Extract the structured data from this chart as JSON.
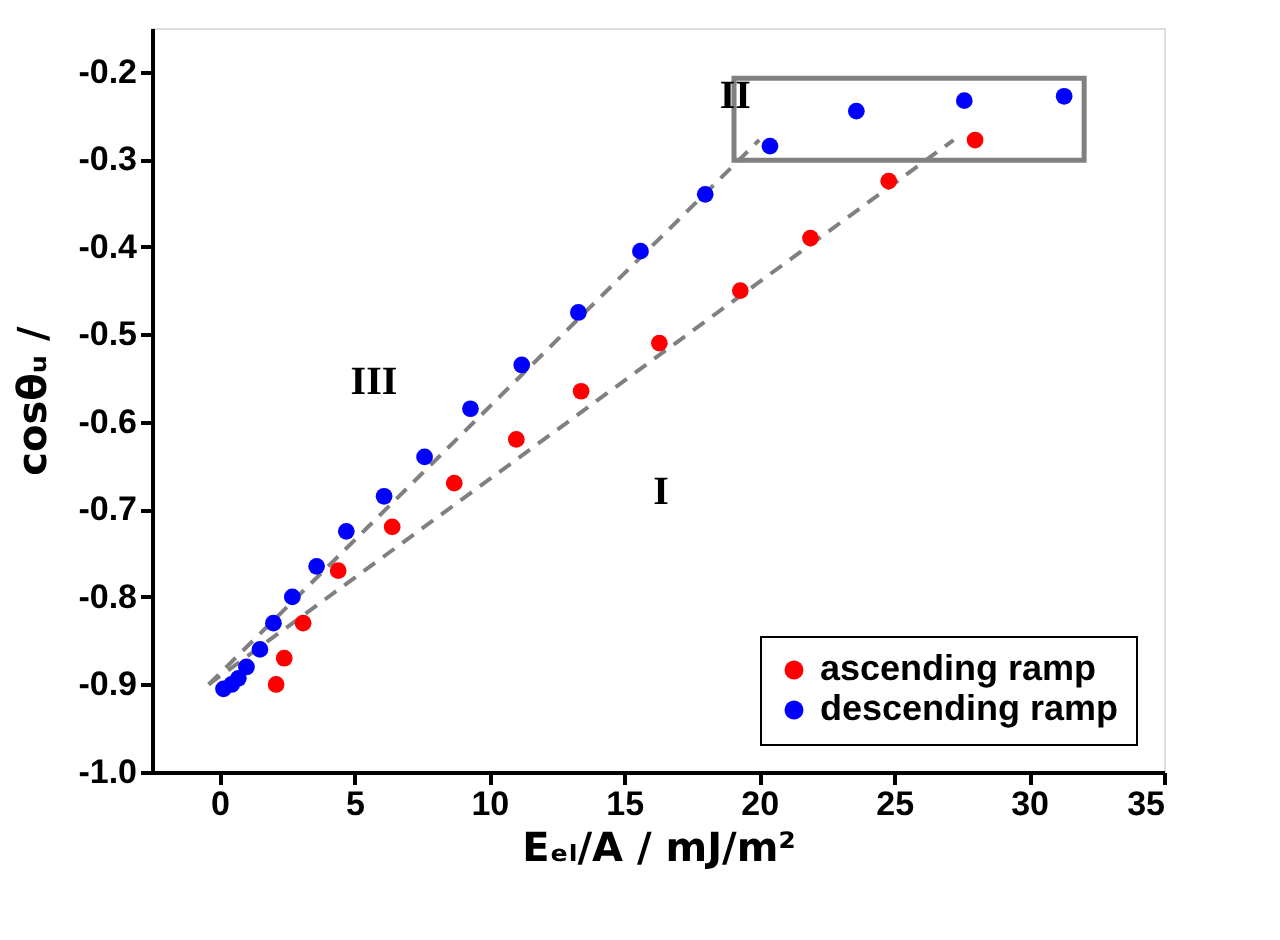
{
  "chart_data": {
    "type": "scatter",
    "xlabel": "Eₑₗ/A / mJ/m²",
    "ylabel": "cosθᵤ /",
    "xlim": [
      -2.5,
      35
    ],
    "xticks": [
      0,
      5,
      10,
      15,
      20,
      25,
      30,
      35
    ],
    "ylim": [
      -1.0,
      -0.15
    ],
    "yticks": [
      {
        "value": -1.0,
        "label": "-1.0"
      },
      {
        "value": -0.9,
        "label": "-0.9"
      },
      {
        "value": -0.8,
        "label": "-0.8"
      },
      {
        "value": -0.7,
        "label": "-0.7"
      },
      {
        "value": -0.6,
        "label": "-0.6"
      },
      {
        "value": -0.5,
        "label": "-0.5"
      },
      {
        "value": -0.4,
        "label": "-0.4"
      },
      {
        "value": -0.3,
        "label": "-0.3"
      },
      {
        "value": -0.2,
        "label": "-0.2"
      }
    ],
    "grid": false,
    "legend": "bottom right",
    "series": [
      {
        "name": "ascending ramp",
        "color": "#ff0000",
        "marker": "circle",
        "x": [
          2.1,
          2.4,
          3.1,
          4.4,
          6.4,
          8.7,
          11.0,
          13.4,
          16.3,
          19.3,
          21.9,
          24.8,
          28.0
        ],
        "values": [
          -0.9,
          -0.87,
          -0.83,
          -0.77,
          -0.72,
          -0.67,
          -0.62,
          -0.565,
          -0.51,
          -0.45,
          -0.39,
          -0.325,
          -0.278
        ]
      },
      {
        "name": "descending ramp",
        "color": "#0000ff",
        "marker": "circle",
        "x": [
          0.15,
          0.45,
          0.7,
          1.0,
          1.5,
          2.0,
          2.7,
          3.6,
          4.7,
          6.1,
          7.6,
          9.3,
          11.2,
          13.3,
          15.6,
          18.0,
          20.4,
          23.6,
          27.6,
          31.3
        ],
        "values": [
          -0.905,
          -0.9,
          -0.893,
          -0.88,
          -0.86,
          -0.83,
          -0.8,
          -0.765,
          -0.725,
          -0.685,
          -0.64,
          -0.585,
          -0.535,
          -0.475,
          -0.405,
          -0.34,
          -0.285,
          -0.245,
          -0.233,
          -0.228
        ]
      },
      {
        "type": "line",
        "color": "#808080",
        "line_style": "dashed",
        "marker": "none",
        "x": [
          -0.4,
          27.2
        ],
        "values": [
          -0.9,
          -0.278
        ]
      },
      {
        "type": "line",
        "color": "#808080",
        "line_style": "dashed",
        "marker": "none",
        "x": [
          -0.4,
          20.0
        ],
        "values": [
          -0.9,
          -0.278
        ]
      }
    ],
    "annotations": [
      "I",
      "II",
      "III"
    ]
  }
}
